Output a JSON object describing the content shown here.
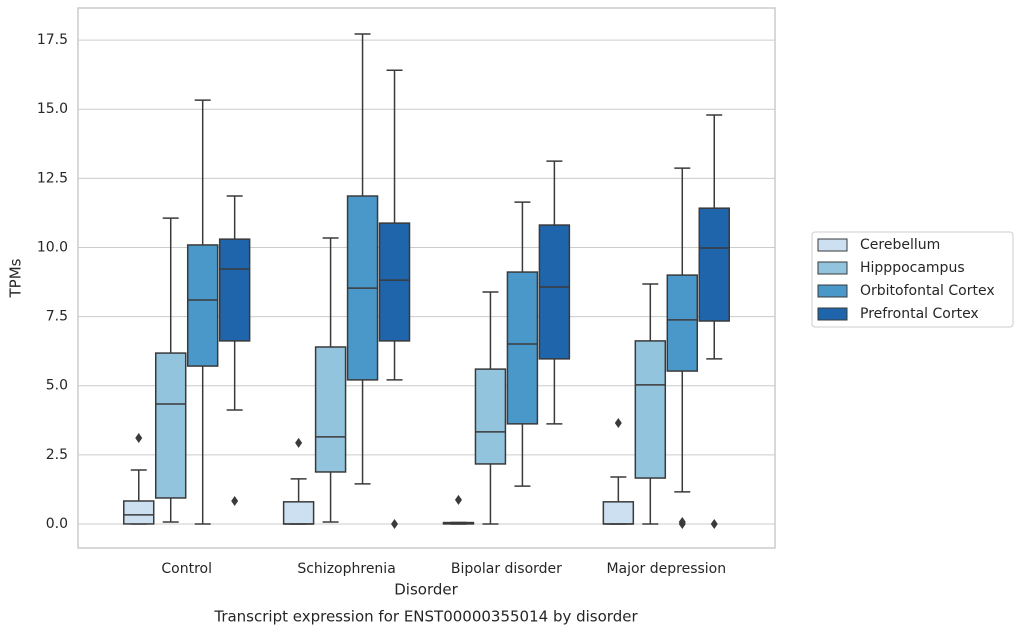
{
  "chart_data": {
    "type": "box",
    "title": "Transcript expression for ENST00000355014 by disorder",
    "xlabel": "Disorder",
    "ylabel": "TPMs",
    "categories": [
      "Control",
      "Schizophrenia",
      "Bipolar disorder",
      "Major depression"
    ],
    "ylim": [
      -0.87,
      18.66
    ],
    "yticks": [
      {
        "value": 0,
        "label": "0.0"
      },
      2.5,
      {
        "value": 5,
        "label": "5.0"
      },
      7.5,
      {
        "value": 10,
        "label": "10.0"
      },
      12.5,
      {
        "value": 15,
        "label": "15.0"
      },
      17.5
    ],
    "grid": true,
    "legend": "right",
    "series": [
      {
        "name": "Cerebellum",
        "color": "#cde0f1",
        "boxes": [
          {
            "whisker_low": 0,
            "q1": 0,
            "median": 0.33,
            "q3": 0.83,
            "whisker_high": 1.95,
            "outliers": [
              3.11
            ]
          },
          {
            "whisker_low": 0,
            "q1": 0,
            "median": 0,
            "q3": 0.8,
            "whisker_high": 1.63,
            "outliers": [
              2.93
            ]
          },
          {
            "whisker_low": 0,
            "q1": 0,
            "median": 0.03,
            "q3": 0.05,
            "whisker_high": 0.05,
            "outliers": [
              0.87
            ]
          },
          {
            "whisker_low": 0,
            "q1": 0,
            "median": 0,
            "q3": 0.8,
            "whisker_high": 1.7,
            "outliers": [
              3.65
            ]
          }
        ]
      },
      {
        "name": "Hipppocampus",
        "color": "#93c4de",
        "boxes": [
          {
            "whisker_low": 0.07,
            "q1": 0.94,
            "median": 4.34,
            "q3": 6.18,
            "whisker_high": 11.06,
            "outliers": []
          },
          {
            "whisker_low": 0.07,
            "q1": 1.88,
            "median": 3.15,
            "q3": 6.4,
            "whisker_high": 10.34,
            "outliers": []
          },
          {
            "whisker_low": 0,
            "q1": 2.17,
            "median": 3.33,
            "q3": 5.6,
            "whisker_high": 8.39,
            "outliers": []
          },
          {
            "whisker_low": 0,
            "q1": 1.66,
            "median": 5.03,
            "q3": 6.62,
            "whisker_high": 8.68,
            "outliers": []
          }
        ]
      },
      {
        "name": "Orbitofontal Cortex",
        "color": "#4a98c9",
        "boxes": [
          {
            "whisker_low": 0,
            "q1": 5.71,
            "median": 8.1,
            "q3": 10.09,
            "whisker_high": 15.33,
            "outliers": []
          },
          {
            "whisker_low": 1.45,
            "q1": 5.21,
            "median": 8.53,
            "q3": 11.86,
            "whisker_high": 17.72,
            "outliers": []
          },
          {
            "whisker_low": 1.37,
            "q1": 3.62,
            "median": 6.51,
            "q3": 9.11,
            "whisker_high": 11.64,
            "outliers": []
          },
          {
            "whisker_low": 1.16,
            "q1": 5.53,
            "median": 7.38,
            "q3": 9.0,
            "whisker_high": 12.87,
            "outliers": [
              0.07,
              0
            ]
          }
        ]
      },
      {
        "name": "Prefrontal Cortex",
        "color": "#1f65ab",
        "boxes": [
          {
            "whisker_low": 4.12,
            "q1": 6.62,
            "median": 9.22,
            "q3": 10.3,
            "whisker_high": 11.86,
            "outliers": [
              0.83
            ]
          },
          {
            "whisker_low": 5.21,
            "q1": 6.62,
            "median": 8.82,
            "q3": 10.88,
            "whisker_high": 16.41,
            "outliers": [
              0
            ]
          },
          {
            "whisker_low": 3.62,
            "q1": 5.97,
            "median": 8.57,
            "q3": 10.81,
            "whisker_high": 13.12,
            "outliers": []
          },
          {
            "whisker_low": 5.97,
            "q1": 7.34,
            "median": 9.98,
            "q3": 11.42,
            "whisker_high": 14.79,
            "outliers": [
              0
            ]
          }
        ]
      }
    ]
  }
}
